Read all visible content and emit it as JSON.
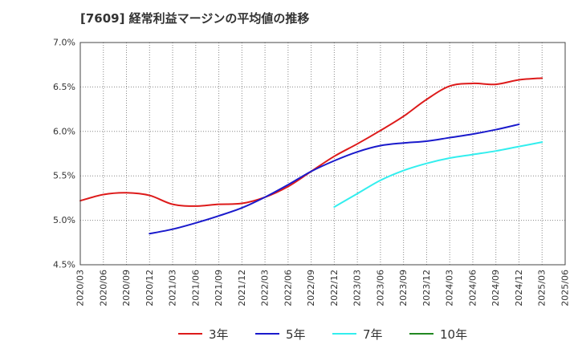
{
  "chart_data": {
    "type": "line",
    "title": "[7609]  経常利益マージンの平均値の推移",
    "xlabel": "",
    "ylabel": "",
    "ylim": [
      4.5,
      7.0
    ],
    "y_ticks": [
      "4.5%",
      "5.0%",
      "5.5%",
      "6.0%",
      "6.5%",
      "7.0%"
    ],
    "x_ticks": [
      "2020/03",
      "2020/06",
      "2020/09",
      "2020/12",
      "2021/03",
      "2021/06",
      "2021/09",
      "2021/12",
      "2022/03",
      "2022/06",
      "2022/09",
      "2022/12",
      "2023/03",
      "2023/06",
      "2023/09",
      "2023/12",
      "2024/03",
      "2024/06",
      "2024/09",
      "2024/12",
      "2025/03",
      "2025/06"
    ],
    "grid": true,
    "legend_position": "bottom",
    "series": [
      {
        "name": "3年",
        "color": "#dd1a1a",
        "start_index": 0,
        "values": [
          5.22,
          5.29,
          5.31,
          5.28,
          5.18,
          5.16,
          5.18,
          5.19,
          5.26,
          5.38,
          5.55,
          5.72,
          5.86,
          6.01,
          6.17,
          6.36,
          6.51,
          6.54,
          6.53,
          6.58,
          6.6
        ]
      },
      {
        "name": "5年",
        "color": "#1a1acc",
        "start_index": 3,
        "values": [
          4.85,
          4.9,
          4.97,
          5.05,
          5.14,
          5.26,
          5.4,
          5.55,
          5.67,
          5.77,
          5.84,
          5.87,
          5.89,
          5.93,
          5.97,
          6.02,
          6.08
        ]
      },
      {
        "name": "7年",
        "color": "#33eeee",
        "start_index": 11,
        "values": [
          5.15,
          5.3,
          5.45,
          5.56,
          5.64,
          5.7,
          5.74,
          5.78,
          5.83,
          5.88
        ]
      },
      {
        "name": "10年",
        "color": "#228822",
        "start_index": 0,
        "values": []
      }
    ]
  }
}
